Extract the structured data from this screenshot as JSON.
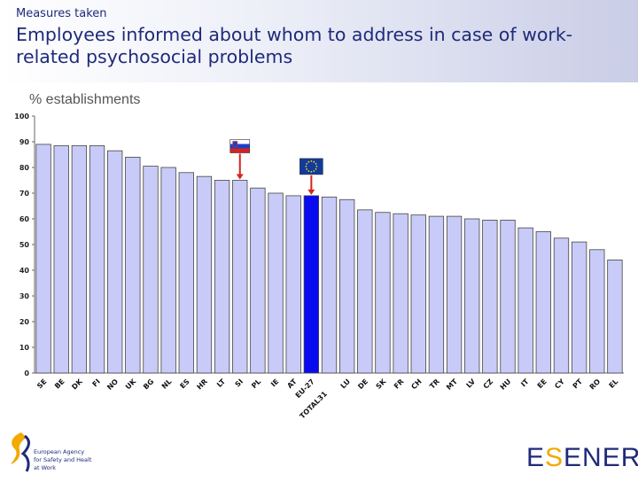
{
  "header": {
    "kicker": "Measures taken",
    "title": "Employees informed about whom to address in case of work-related psychosocial problems"
  },
  "chart_data": {
    "type": "bar",
    "ylabel": "% establishments",
    "ylim": [
      0,
      100
    ],
    "yticks": [
      0,
      10,
      20,
      30,
      40,
      50,
      60,
      70,
      80,
      90,
      100
    ],
    "categories": [
      "SE",
      "BE",
      "DK",
      "FI",
      "NO",
      "UK",
      "BG",
      "NL",
      "ES",
      "HR",
      "LT",
      "SI",
      "PL",
      "IE",
      "AT",
      "EU-27",
      "TOTAL31",
      "LU",
      "DE",
      "SK",
      "FR",
      "CH",
      "TR",
      "MT",
      "LV",
      "CZ",
      "HU",
      "IT",
      "EE",
      "CY",
      "PT",
      "RO",
      "EL"
    ],
    "values": [
      89,
      88.5,
      88.5,
      88.5,
      86.5,
      84,
      80.5,
      80,
      78,
      76.5,
      75,
      75,
      72,
      70,
      69,
      69,
      68.5,
      67.5,
      63.5,
      62.5,
      62,
      61.5,
      61,
      61,
      60,
      59.5,
      59.5,
      56.5,
      55,
      52.5,
      51,
      48,
      44
    ],
    "highlight_colors": {
      "default": "#c8cbf7",
      "highlight": "#0a0af0",
      "edge": "#444444"
    },
    "highlighted_category": "EU-27",
    "flag_markers": [
      {
        "category": "SI",
        "icon": "slovenia-flag-icon"
      },
      {
        "category": "EU-27",
        "icon": "eu-flag-icon"
      }
    ]
  },
  "footer": {
    "agency_text": [
      "European Agency",
      "for Safety and Health",
      "at Work"
    ],
    "esener_pre": "E",
    "esener_s": "S",
    "esener_post": "ENER"
  }
}
